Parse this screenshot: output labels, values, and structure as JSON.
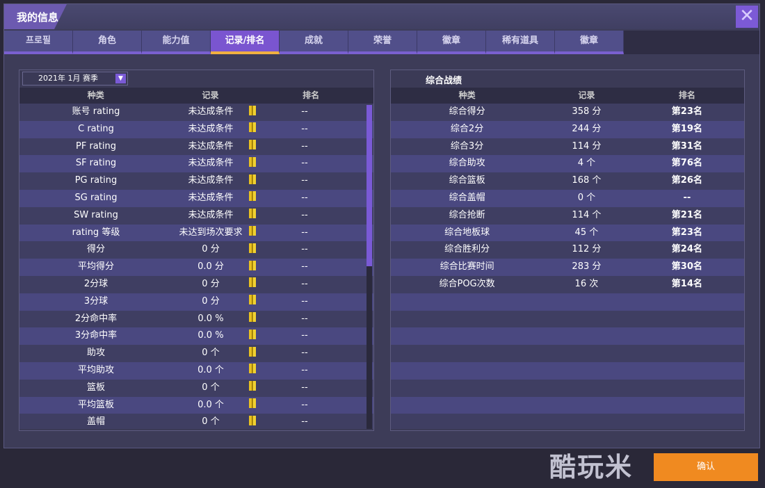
{
  "window": {
    "title": "我的信息",
    "close_icon": "close-icon"
  },
  "tabs": [
    {
      "label": "프로필"
    },
    {
      "label": "角色"
    },
    {
      "label": "能力值"
    },
    {
      "label": "记录/排名",
      "active": true
    },
    {
      "label": "成就"
    },
    {
      "label": "荣誉"
    },
    {
      "label": "徽章"
    },
    {
      "label": "稀有道具"
    },
    {
      "label": "徽章"
    }
  ],
  "left": {
    "season": "2021年 1月 赛季",
    "headers": [
      "种类",
      "记录",
      "排名"
    ],
    "rows": [
      {
        "type": "账号 rating",
        "record": "未达成条件",
        "rank": "--"
      },
      {
        "type": "C rating",
        "record": "未达成条件",
        "rank": "--"
      },
      {
        "type": "PF rating",
        "record": "未达成条件",
        "rank": "--"
      },
      {
        "type": "SF rating",
        "record": "未达成条件",
        "rank": "--"
      },
      {
        "type": "PG rating",
        "record": "未达成条件",
        "rank": "--"
      },
      {
        "type": "SG rating",
        "record": "未达成条件",
        "rank": "--"
      },
      {
        "type": "SW rating",
        "record": "未达成条件",
        "rank": "--"
      },
      {
        "type": "rating 等级",
        "record": "未达到场次要求",
        "rank": "--"
      },
      {
        "type": "得分",
        "record": "0 分",
        "rank": "--"
      },
      {
        "type": "平均得分",
        "record": "0.0 分",
        "rank": "--"
      },
      {
        "type": "2分球",
        "record": "0 分",
        "rank": "--"
      },
      {
        "type": "3分球",
        "record": "0 分",
        "rank": "--"
      },
      {
        "type": "2分命中率",
        "record": "0.0 %",
        "rank": "--"
      },
      {
        "type": "3分命中率",
        "record": "0.0 %",
        "rank": "--"
      },
      {
        "type": "助攻",
        "record": "0 个",
        "rank": "--"
      },
      {
        "type": "平均助攻",
        "record": "0.0 个",
        "rank": "--"
      },
      {
        "type": "篮板",
        "record": "0 个",
        "rank": "--"
      },
      {
        "type": "平均篮板",
        "record": "0.0 个",
        "rank": "--"
      },
      {
        "type": "盖帽",
        "record": "0 个",
        "rank": "--"
      }
    ]
  },
  "right": {
    "title": "综合战绩",
    "headers": [
      "种类",
      "记录",
      "排名"
    ],
    "rows": [
      {
        "type": "综合得分",
        "record": "358 分",
        "rank": "第23名"
      },
      {
        "type": "综合2分",
        "record": "244 分",
        "rank": "第19名"
      },
      {
        "type": "综合3分",
        "record": "114 分",
        "rank": "第31名"
      },
      {
        "type": "综合助攻",
        "record": "4 个",
        "rank": "第76名"
      },
      {
        "type": "综合篮板",
        "record": "168 个",
        "rank": "第26名"
      },
      {
        "type": "综合盖帽",
        "record": "0 个",
        "rank": "--"
      },
      {
        "type": "综合抢断",
        "record": "114 个",
        "rank": "第21名"
      },
      {
        "type": "综合地板球",
        "record": "45 个",
        "rank": "第23名"
      },
      {
        "type": "综合胜利分",
        "record": "112 分",
        "rank": "第24名"
      },
      {
        "type": "综合比赛时间",
        "record": "283 分",
        "rank": "第30名"
      },
      {
        "type": "综合POG次数",
        "record": "16 次",
        "rank": "第14名"
      }
    ]
  },
  "confirm_label": "确认",
  "watermark": "酷玩米"
}
